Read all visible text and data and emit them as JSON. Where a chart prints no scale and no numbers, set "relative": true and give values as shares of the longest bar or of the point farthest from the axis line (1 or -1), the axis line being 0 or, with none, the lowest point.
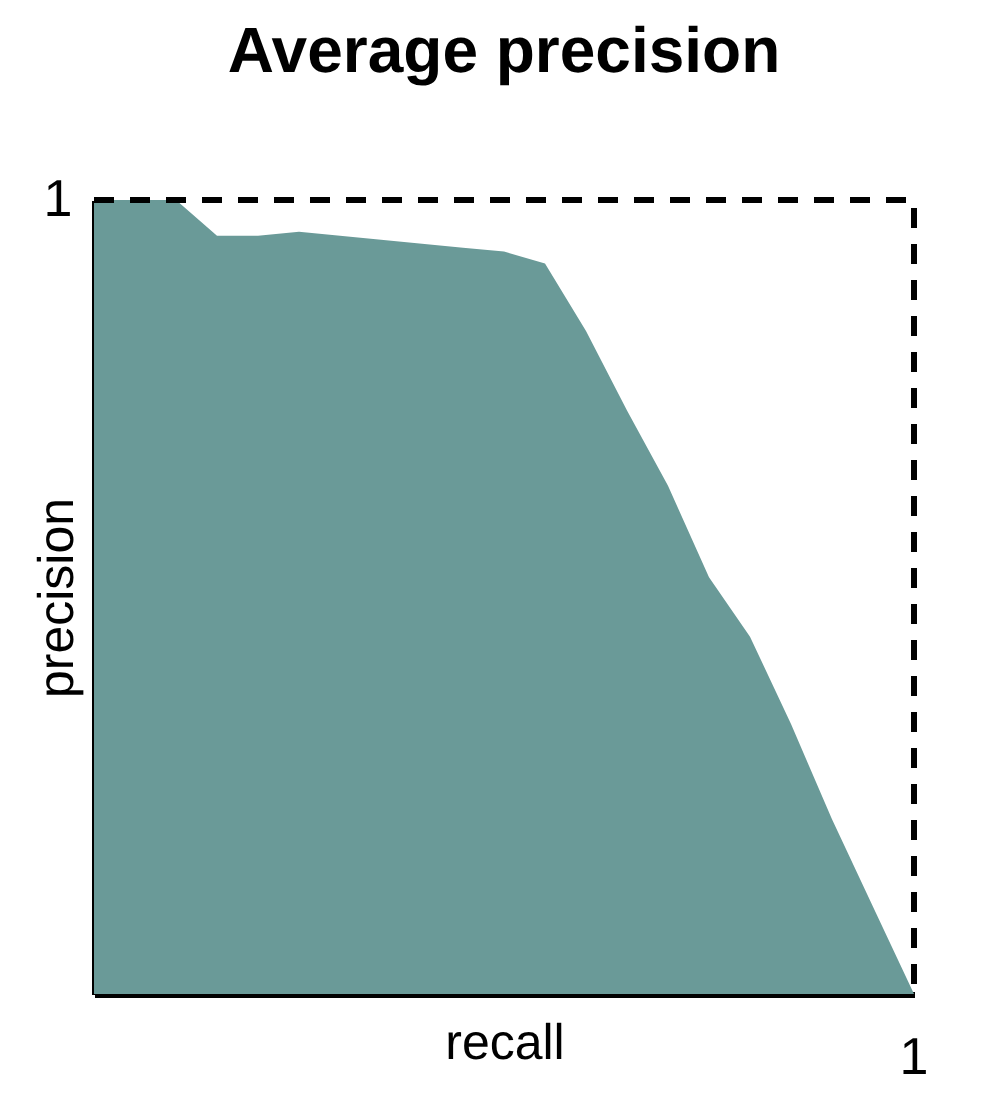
{
  "chart_data": {
    "type": "area",
    "title": "Average precision",
    "xlabel": "recall",
    "ylabel": "precision",
    "relative": true,
    "categories": [
      null,
      null,
      null,
      null,
      null,
      null,
      null,
      null,
      null,
      null,
      null,
      null,
      null,
      null,
      null,
      null,
      null,
      null,
      null,
      null,
      null
    ],
    "series": [
      {
        "color": "#6a9a98",
        "values": [
          1,
          1,
          1,
          0.955,
          0.955,
          0.96,
          0.955,
          0.95,
          0.945,
          0.94,
          0.935,
          0.92,
          0.835,
          0.735,
          0.64,
          0.525,
          0.45,
          0.34,
          0.22,
          0.11,
          0
        ]
      }
    ],
    "annotations": [
      "1",
      "1"
    ]
  }
}
